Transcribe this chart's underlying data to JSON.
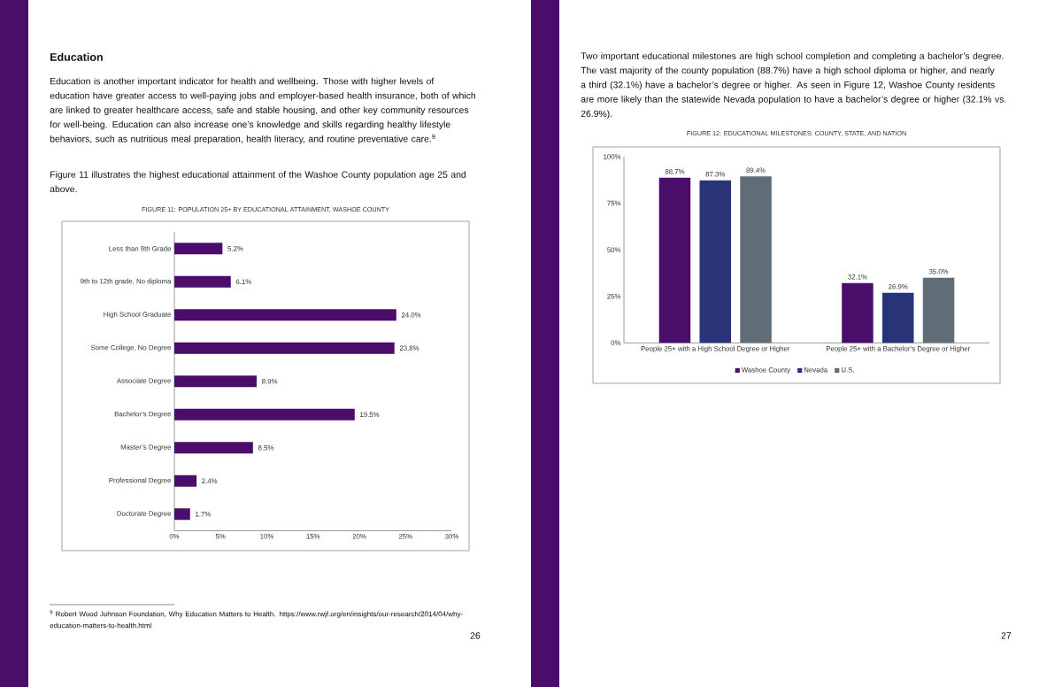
{
  "chart_data": [
    {
      "type": "bar",
      "title": "FIGURE 11: POPULATION 25+ BY EDUCATIONAL ATTAINMENT, WASHOE COUNTY",
      "orientation": "horizontal",
      "categories": [
        "Less than 9th Grade",
        "9th to 12th grade, No diploma",
        "High School Graduate",
        "Some College, No Degree",
        "Associate Degree",
        "Bachelor’s Degree",
        "Master’s Degree",
        "Professional Degree",
        "Doctorate Degree"
      ],
      "series": [
        {
          "color": "#4a0e6a",
          "values": [
            5.2,
            6.1,
            24.0,
            23.8,
            8.9,
            19.5,
            8.5,
            2.4,
            1.7
          ],
          "value_labels": [
            "5.2%",
            "6.1%",
            "24.0%",
            "23.8%",
            "8.9%",
            "19.5%",
            "8.5%",
            "2.4%",
            "1.7%"
          ]
        }
      ],
      "xlim": [
        0,
        30
      ],
      "xticks": [
        {
          "value": 0,
          "label": "0%"
        },
        {
          "value": 5,
          "label": "5%"
        },
        {
          "value": 10,
          "label": "10%"
        },
        {
          "value": 15,
          "label": "15%"
        },
        {
          "value": 20,
          "label": "20%"
        },
        {
          "value": 25,
          "label": "25%"
        },
        {
          "value": 30,
          "label": "30%"
        }
      ],
      "annotations": [
        "Education",
        "Education is another important indicator for health and wellbeing. Those with higher levels of education have greater access to well-paying jobs and employer-based health insurance, both of which are linked to greater healthcare access, safe and stable housing, and other key community resources for well-being. Education can also increase one’s knowledge and skills regarding healthy lifestyle behaviors, such as nutritious meal preparation, health literacy, and routine preventative care.$^{9}$",
        "Figure 11 illustrates the highest educational attainment of the Washoe County population age 25 and above.",
        "$^{9}$ Robert Wood Johnson Foundation, Why Education Matters to Health. https://www.rwjf.org/en/insights/our-research/2014/04/why-education-matters-to-health.html",
        "26"
      ]
    },
    {
      "type": "bar",
      "title": "FIGURE 12: EDUCATIONAL MILESTONES: COUNTY, STATE, AND NATION",
      "categories": [
        "People 25+ with a High School Degree or Higher",
        "People 25+ with a Bachelor’s Degree or Higher"
      ],
      "series": [
        {
          "name": "Washoe County",
          "color": "#4a0e6a",
          "values": [
            88.7,
            32.1
          ],
          "value_labels": [
            "88.7%",
            "32.1%"
          ]
        },
        {
          "name": "Nevada",
          "color": "#283378",
          "values": [
            87.3,
            26.9
          ],
          "value_labels": [
            "87.3%",
            "26.9%"
          ]
        },
        {
          "name": "U.S.",
          "color": "#5e6d78",
          "values": [
            89.4,
            35.0
          ],
          "value_labels": [
            "89.4%",
            "35.0%"
          ]
        }
      ],
      "ylim": [
        0,
        100
      ],
      "yticks": [
        {
          "value": 0,
          "label": "0%"
        },
        {
          "value": 25,
          "label": "25%"
        },
        {
          "value": 50,
          "label": "50%"
        },
        {
          "value": 75,
          "label": "75%"
        },
        {
          "value": 100,
          "label": "100%"
        }
      ],
      "legend": "bottom",
      "annotations": [
        "Two important educational milestones are high school completion and completing a bachelor’s degree. The vast majority of the county population (88.7%) have a high school diploma or higher, and nearly a third (32.1%) have a bachelor’s degree or higher. As seen in Figure 12, Washoe County residents are more likely than the statewide Nevada population to have a bachelor’s degree or higher (32.1% vs. 26.9%).",
        "27"
      ]
    }
  ]
}
